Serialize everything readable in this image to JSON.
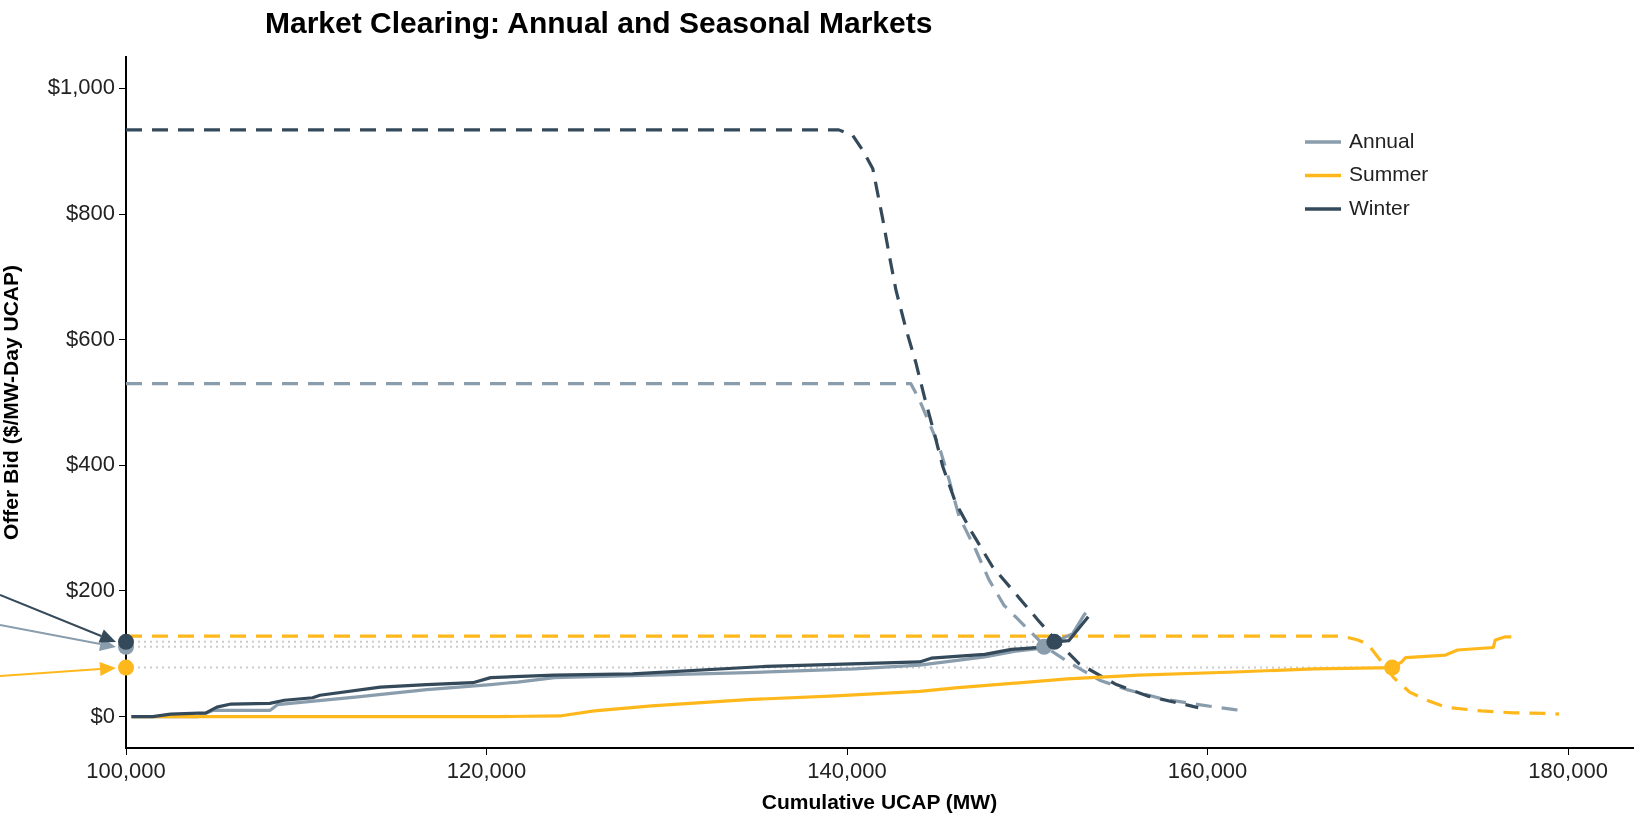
{
  "chart_data": {
    "type": "line",
    "title": "Market Clearing: Annual and Seasonal Markets",
    "xlabel": "Cumulative UCAP (MW)",
    "ylabel": "Offer Bid ($/MW-Day UCAP)",
    "xlim": [
      100000,
      183600
    ],
    "ylim": [
      -50,
      1050
    ],
    "xticks": [
      {
        "value": 100000,
        "label": "100,000"
      },
      {
        "value": 120000,
        "label": "120,000"
      },
      {
        "value": 140000,
        "label": "140,000"
      },
      {
        "value": 160000,
        "label": "160,000"
      },
      {
        "value": 180000,
        "label": "180,000"
      }
    ],
    "yticks": [
      {
        "value": 0,
        "label": "$0"
      },
      {
        "value": 200,
        "label": "$200"
      },
      {
        "value": 400,
        "label": "$400"
      },
      {
        "value": 600,
        "label": "$600"
      },
      {
        "value": 800,
        "label": "$800"
      },
      {
        "value": 1000,
        "label": "$1,000"
      }
    ],
    "legend": "top right",
    "series": [
      {
        "color": "#cccccc",
        "line_style": "dotted",
        "x": [
          100000,
          151500
        ],
        "values": [
          119,
          119
        ]
      },
      {
        "color": "#cccccc",
        "line_style": "dotted",
        "x": [
          100000,
          150930
        ],
        "values": [
          111,
          111
        ]
      },
      {
        "color": "#cccccc",
        "line_style": "dotted",
        "x": [
          100000,
          170240
        ],
        "values": [
          78,
          78
        ]
      },
      {
        "color": "#ffb81c",
        "line_style": "dashed",
        "x": [
          100000,
          167460,
          168340,
          168890,
          169770,
          170320,
          171210,
          172090,
          173200,
          175180,
          176950,
          178940,
          179500
        ],
        "values": [
          128,
          128,
          122,
          115,
          83,
          62,
          39,
          27,
          15,
          9,
          6,
          5,
          4
        ]
      },
      {
        "color": "#8a9dad",
        "line_style": "dashed",
        "x": [
          100000,
          143540,
          144000,
          145110,
          145660,
          146210,
          147130,
          147870,
          148710,
          149340,
          151050,
          152310,
          154010,
          155530,
          157520,
          159510,
          161500,
          161780
        ],
        "values": [
          530,
          530,
          505,
          430,
          377,
          319,
          266,
          218,
          177,
          159,
          110,
          86,
          58,
          43,
          28,
          19,
          11,
          10
        ]
      },
      {
        "color": "#344a5b",
        "line_style": "dashed",
        "x": [
          100000,
          139540,
          140320,
          140880,
          141430,
          141980,
          142350,
          142720,
          143270,
          143820,
          144280,
          144830,
          145300,
          146030,
          146950,
          148060,
          149340,
          150610,
          151660,
          152880,
          154870,
          156640,
          159070,
          159480
        ],
        "values": [
          934,
          934,
          925,
          901,
          872,
          792,
          733,
          678,
          617,
          563,
          510,
          452,
          399,
          340,
          292,
          239,
          196,
          153,
          119,
          84,
          52,
          33,
          17,
          14
        ]
      },
      {
        "name": "Annual",
        "color": "#8a9dad",
        "line_style": "solid",
        "x": [
          100300,
          104000,
          104830,
          108000,
          108400,
          112720,
          116680,
          120230,
          121730,
          123770,
          134470,
          140410,
          144030,
          147640,
          149340,
          150830,
          150930,
          152520,
          153150,
          153250
        ],
        "values": [
          0,
          0,
          10,
          10,
          19,
          31,
          43,
          51,
          55,
          62,
          70,
          76,
          82,
          95,
          104,
          109,
          111,
          132,
          162,
          165
        ]
      },
      {
        "name": "Summer",
        "color": "#ffb81c",
        "line_style": "solid",
        "x": [
          100300,
          120620,
          124060,
          125980,
          129160,
          134470,
          139360,
          144030,
          146160,
          152220,
          156200,
          161500,
          165920,
          170240,
          170770,
          170990,
          173200,
          173870,
          175850,
          175960,
          176520,
          176850
        ],
        "values": [
          0,
          0,
          1,
          9,
          17,
          27,
          33,
          40,
          46,
          60,
          66,
          71,
          76,
          78,
          87,
          94,
          98,
          106,
          110,
          122,
          127,
          127
        ]
      },
      {
        "name": "Winter",
        "color": "#344a5b",
        "line_style": "solid",
        "x": [
          100300,
          101490,
          102470,
          104440,
          105040,
          105820,
          107980,
          108790,
          110350,
          110760,
          114110,
          116680,
          119240,
          120230,
          123770,
          128100,
          135540,
          144030,
          144670,
          147640,
          149120,
          151050,
          151500,
          152310,
          152950,
          153380
        ],
        "values": [
          0,
          0,
          4,
          6,
          15,
          20,
          21,
          26,
          30,
          34,
          47,
          51,
          54,
          62,
          66,
          68,
          80,
          87,
          93,
          99,
          107,
          111,
          119,
          121,
          144,
          159
        ]
      },
      {
        "type": "scatter",
        "color": "#8a9dad",
        "marker": "circle",
        "x": [
          100000,
          150930
        ],
        "values": [
          111,
          111
        ]
      },
      {
        "type": "scatter",
        "color": "#ffb81c",
        "marker": "circle",
        "x": [
          100000,
          170240
        ],
        "values": [
          78,
          78
        ]
      },
      {
        "type": "scatter",
        "color": "#344a5b",
        "marker": "circle",
        "x": [
          100000,
          151500
        ],
        "values": [
          119,
          119
        ]
      }
    ]
  }
}
